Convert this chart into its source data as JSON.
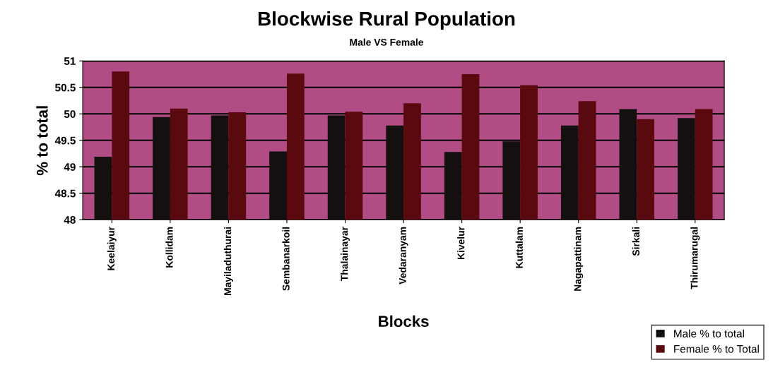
{
  "chart_data": {
    "type": "bar",
    "title": "Blockwise Rural Population",
    "subtitle": "Male VS Female",
    "xlabel": "Blocks",
    "ylabel": "% to total",
    "categories": [
      "Keelaiyur",
      "Kollidam",
      "Mayiladuthurai",
      "Sembanarkoil",
      "Thalainayar",
      "Vedaranyam",
      "Kivelur",
      "Kuttalam",
      "Nagapattinam",
      "Sirkali",
      "Thirumarugal"
    ],
    "series": [
      {
        "name": "Male % to total",
        "color": "#141010",
        "values": [
          49.19,
          49.94,
          49.97,
          49.29,
          49.97,
          49.78,
          49.28,
          49.48,
          49.78,
          50.09,
          49.92
        ]
      },
      {
        "name": "Female % to Total",
        "color": "#5a0a0e",
        "values": [
          50.8,
          50.1,
          50.03,
          50.76,
          50.04,
          50.2,
          50.75,
          50.54,
          50.24,
          49.9,
          50.09
        ]
      }
    ],
    "ylim": [
      48,
      51
    ],
    "yticks": [
      48,
      48.5,
      49,
      49.5,
      50,
      50.5,
      51
    ],
    "grid": "y",
    "legend": "bottom right"
  }
}
